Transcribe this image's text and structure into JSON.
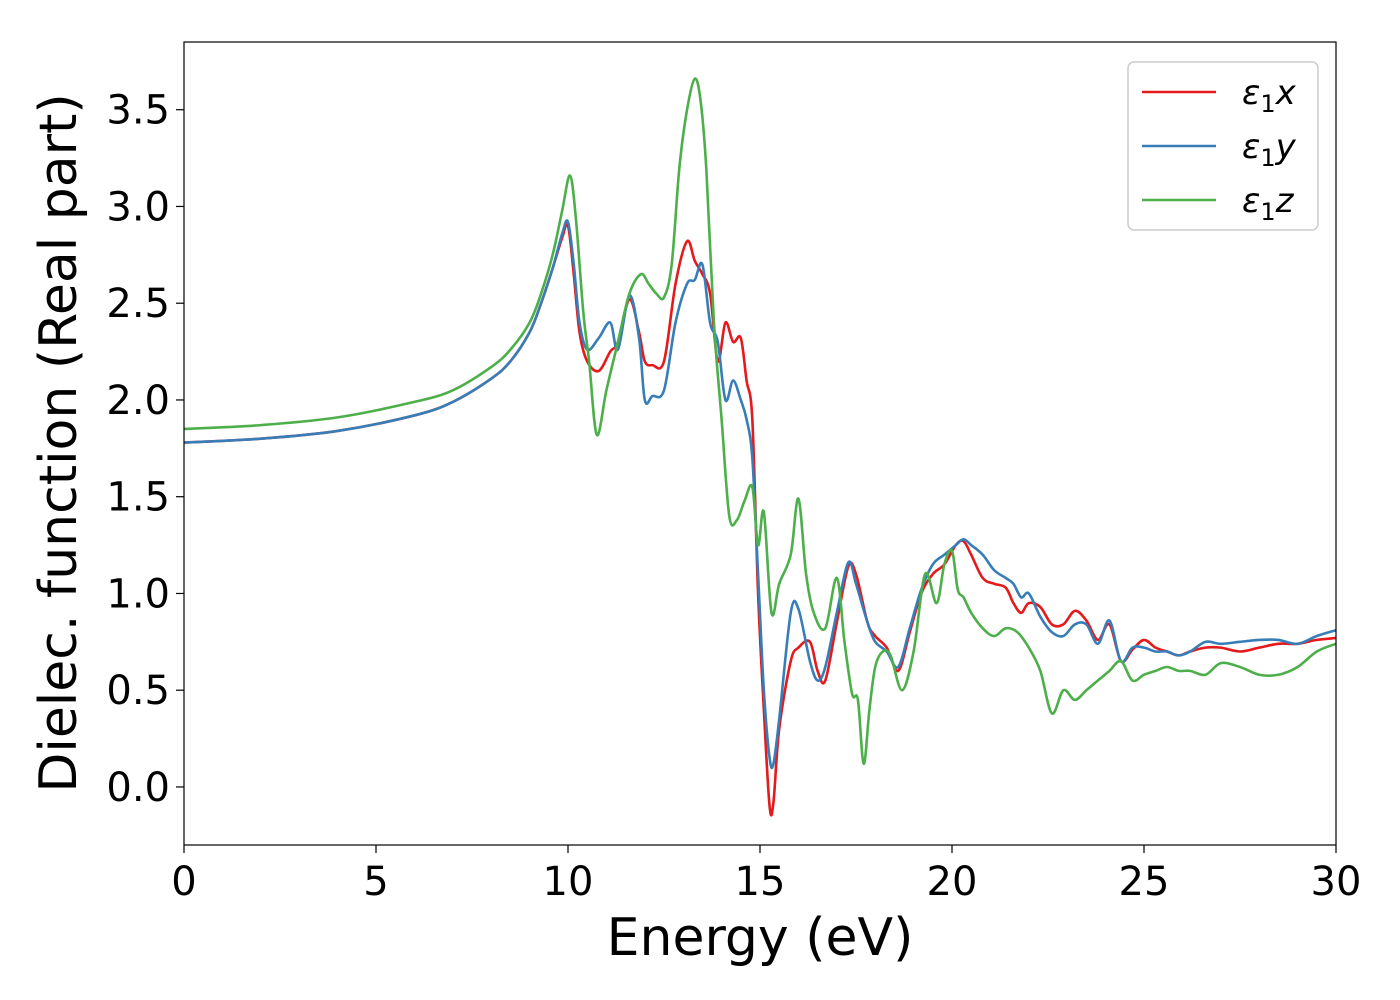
{
  "chart_data": {
    "type": "line",
    "title": "",
    "xlabel": "Energy (eV)",
    "ylabel": "Dielec. function (Real part)",
    "xlim": [
      0,
      30
    ],
    "ylim": [
      -0.3,
      3.85
    ],
    "xticks": [
      0,
      5,
      10,
      15,
      20,
      25,
      30
    ],
    "xtick_labels": [
      "0",
      "5",
      "10",
      "15",
      "20",
      "25",
      "30"
    ],
    "yticks": [
      0.0,
      0.5,
      1.0,
      1.5,
      2.0,
      2.5,
      3.0,
      3.5
    ],
    "ytick_labels": [
      "0.0",
      "0.5",
      "1.0",
      "1.5",
      "2.0",
      "2.5",
      "3.0",
      "3.5"
    ],
    "grid": false,
    "legend_position": "top-right",
    "series": [
      {
        "name": "ε₁x",
        "legend": {
          "symbol": "ε",
          "sub": "1",
          "suffix": "x"
        },
        "color": "#e41a1c",
        "x": [
          0,
          2,
          4,
          6,
          7,
          8,
          8.5,
          9,
          9.3,
          9.6,
          9.85,
          10.0,
          10.15,
          10.3,
          10.5,
          10.8,
          11.1,
          11.3,
          11.6,
          11.85,
          12.0,
          12.2,
          12.5,
          12.8,
          13.1,
          13.3,
          13.5,
          13.7,
          13.9,
          14.1,
          14.3,
          14.5,
          14.65,
          14.8,
          14.95,
          15.1,
          15.25,
          15.35,
          15.5,
          15.8,
          16.0,
          16.3,
          16.5,
          16.7,
          17.0,
          17.3,
          17.5,
          17.8,
          18.0,
          18.3,
          18.6,
          18.9,
          19.2,
          19.5,
          19.8,
          20.1,
          20.3,
          20.5,
          20.8,
          21.1,
          21.4,
          21.6,
          21.8,
          22.0,
          22.3,
          22.6,
          22.9,
          23.2,
          23.5,
          23.8,
          24.1,
          24.4,
          24.7,
          25.0,
          25.3,
          25.6,
          25.9,
          26.2,
          26.6,
          27.0,
          27.5,
          28.0,
          28.5,
          29.0,
          29.5,
          30.0
        ],
        "y": [
          1.78,
          1.8,
          1.84,
          1.92,
          1.99,
          2.11,
          2.2,
          2.35,
          2.5,
          2.68,
          2.84,
          2.9,
          2.65,
          2.35,
          2.2,
          2.15,
          2.25,
          2.3,
          2.52,
          2.35,
          2.2,
          2.18,
          2.2,
          2.6,
          2.82,
          2.72,
          2.65,
          2.55,
          2.2,
          2.4,
          2.3,
          2.32,
          2.1,
          1.9,
          1.0,
          0.4,
          -0.1,
          -0.08,
          0.3,
          0.65,
          0.72,
          0.75,
          0.6,
          0.55,
          0.85,
          1.14,
          1.1,
          0.85,
          0.78,
          0.72,
          0.6,
          0.8,
          1.0,
          1.1,
          1.15,
          1.25,
          1.27,
          1.2,
          1.08,
          1.05,
          1.03,
          0.95,
          0.9,
          0.95,
          0.93,
          0.84,
          0.84,
          0.91,
          0.86,
          0.76,
          0.84,
          0.65,
          0.71,
          0.76,
          0.72,
          0.7,
          0.68,
          0.7,
          0.72,
          0.72,
          0.7,
          0.72,
          0.74,
          0.74,
          0.76,
          0.77
        ]
      },
      {
        "name": "ε₁y",
        "legend": {
          "symbol": "ε",
          "sub": "1",
          "suffix": "y"
        },
        "color": "#377eb8",
        "x": [
          0,
          2,
          4,
          6,
          7,
          8,
          8.5,
          9,
          9.3,
          9.6,
          9.85,
          10.0,
          10.15,
          10.3,
          10.5,
          10.8,
          11.1,
          11.3,
          11.6,
          11.85,
          12.0,
          12.2,
          12.5,
          12.8,
          13.1,
          13.3,
          13.5,
          13.7,
          13.9,
          14.1,
          14.3,
          14.5,
          14.65,
          14.8,
          14.95,
          15.1,
          15.25,
          15.35,
          15.5,
          15.8,
          16.0,
          16.3,
          16.5,
          16.7,
          17.0,
          17.3,
          17.5,
          17.8,
          18.0,
          18.3,
          18.6,
          18.9,
          19.2,
          19.5,
          19.8,
          20.1,
          20.3,
          20.5,
          20.8,
          21.1,
          21.4,
          21.6,
          21.8,
          22.0,
          22.3,
          22.6,
          22.9,
          23.2,
          23.5,
          23.8,
          24.1,
          24.4,
          24.7,
          25.0,
          25.3,
          25.6,
          25.9,
          26.2,
          26.6,
          27.0,
          27.5,
          28.0,
          28.5,
          29.0,
          29.5,
          30.0
        ],
        "y": [
          1.78,
          1.8,
          1.84,
          1.92,
          1.99,
          2.11,
          2.2,
          2.35,
          2.5,
          2.68,
          2.86,
          2.92,
          2.7,
          2.4,
          2.26,
          2.32,
          2.4,
          2.26,
          2.54,
          2.32,
          2.0,
          2.02,
          2.05,
          2.4,
          2.6,
          2.62,
          2.7,
          2.4,
          2.3,
          2.0,
          2.1,
          2.0,
          1.9,
          1.7,
          1.1,
          0.5,
          0.15,
          0.12,
          0.35,
          0.9,
          0.92,
          0.65,
          0.55,
          0.62,
          0.9,
          1.16,
          1.05,
          0.85,
          0.75,
          0.7,
          0.62,
          0.82,
          1.02,
          1.15,
          1.2,
          1.25,
          1.28,
          1.25,
          1.2,
          1.12,
          1.08,
          1.05,
          0.98,
          1.0,
          0.88,
          0.8,
          0.78,
          0.84,
          0.84,
          0.74,
          0.86,
          0.65,
          0.72,
          0.72,
          0.7,
          0.7,
          0.68,
          0.7,
          0.75,
          0.74,
          0.75,
          0.76,
          0.76,
          0.74,
          0.78,
          0.81
        ]
      },
      {
        "name": "ε₁z",
        "legend": {
          "symbol": "ε",
          "sub": "1",
          "suffix": "z"
        },
        "color": "#4daf4a",
        "x": [
          0,
          2,
          4,
          6,
          7,
          8,
          8.5,
          9,
          9.3,
          9.6,
          9.85,
          10.05,
          10.2,
          10.4,
          10.55,
          10.75,
          11.0,
          11.3,
          11.6,
          11.9,
          12.1,
          12.3,
          12.5,
          12.7,
          12.9,
          13.1,
          13.3,
          13.45,
          13.6,
          13.8,
          14.0,
          14.2,
          14.4,
          14.6,
          14.8,
          14.95,
          15.1,
          15.3,
          15.5,
          15.8,
          16.0,
          16.2,
          16.4,
          16.7,
          17.0,
          17.2,
          17.4,
          17.55,
          17.7,
          17.85,
          18.0,
          18.2,
          18.4,
          18.7,
          19.0,
          19.3,
          19.6,
          19.8,
          20.0,
          20.15,
          20.3,
          20.5,
          20.8,
          21.1,
          21.4,
          21.7,
          22.0,
          22.3,
          22.6,
          22.9,
          23.2,
          23.5,
          23.8,
          24.1,
          24.4,
          24.7,
          25.0,
          25.3,
          25.6,
          25.9,
          26.2,
          26.6,
          27.0,
          27.5,
          28.0,
          28.5,
          29.0,
          29.5,
          30.0
        ],
        "y": [
          1.85,
          1.87,
          1.91,
          1.99,
          2.05,
          2.17,
          2.26,
          2.4,
          2.55,
          2.75,
          2.98,
          3.16,
          2.95,
          2.45,
          2.2,
          1.82,
          2.05,
          2.3,
          2.55,
          2.65,
          2.6,
          2.55,
          2.53,
          2.7,
          3.2,
          3.5,
          3.66,
          3.55,
          3.2,
          2.4,
          1.9,
          1.4,
          1.38,
          1.48,
          1.55,
          1.25,
          1.42,
          0.9,
          1.05,
          1.2,
          1.49,
          1.1,
          0.9,
          0.82,
          1.08,
          0.75,
          0.48,
          0.45,
          0.12,
          0.4,
          0.62,
          0.7,
          0.68,
          0.5,
          0.7,
          1.1,
          0.95,
          1.15,
          1.22,
          1.02,
          0.98,
          0.9,
          0.82,
          0.78,
          0.82,
          0.8,
          0.72,
          0.6,
          0.38,
          0.5,
          0.45,
          0.5,
          0.55,
          0.6,
          0.65,
          0.55,
          0.58,
          0.6,
          0.62,
          0.6,
          0.6,
          0.58,
          0.64,
          0.62,
          0.58,
          0.58,
          0.62,
          0.7,
          0.74
        ]
      }
    ]
  }
}
